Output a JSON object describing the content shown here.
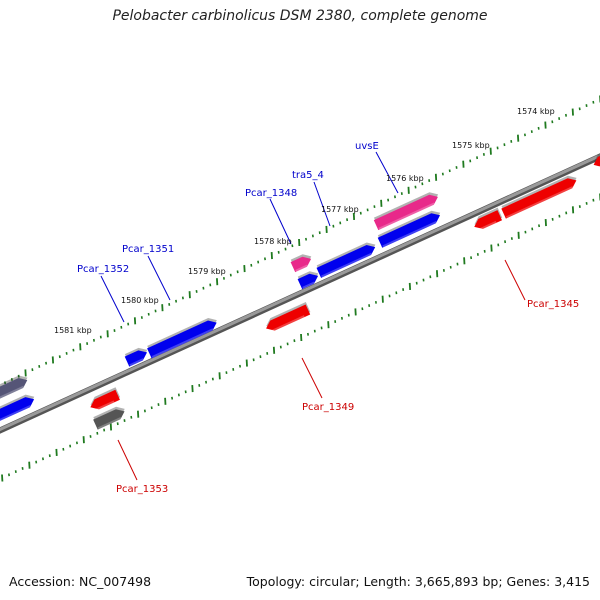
{
  "title": "Pelobacter carbinolicus DSM 2380, complete genome",
  "footer": {
    "accession": "Accession: NC_007498",
    "stats": "Topology: circular; Length: 3,665,893 bp; Genes: 3,415"
  },
  "colors": {
    "background": "#ffffff",
    "backbone": "#808080",
    "tick": "#1f7a1f",
    "forward_gene": "#0000ee",
    "reverse_gene": "#ee0000",
    "rna_gene": "#e8298a",
    "pseudo_gene": "#555577",
    "forward_label": "#0000cc",
    "reverse_label": "#cc0000"
  },
  "kbp_labels": [
    "1574 kbp",
    "1575 kbp",
    "1576 kbp",
    "1577 kbp",
    "1578 kbp",
    "1579 kbp",
    "1580 kbp",
    "1581 kbp"
  ],
  "gene_labels": [
    {
      "name": "uvsE",
      "strand": "forward"
    },
    {
      "name": "tra5_4",
      "strand": "forward"
    },
    {
      "name": "Pcar_1348",
      "strand": "forward"
    },
    {
      "name": "Pcar_1351",
      "strand": "forward"
    },
    {
      "name": "Pcar_1352",
      "strand": "forward"
    },
    {
      "name": "Pcar_1345",
      "strand": "reverse"
    },
    {
      "name": "Pcar_1349",
      "strand": "reverse"
    },
    {
      "name": "Pcar_1353",
      "strand": "reverse"
    }
  ]
}
